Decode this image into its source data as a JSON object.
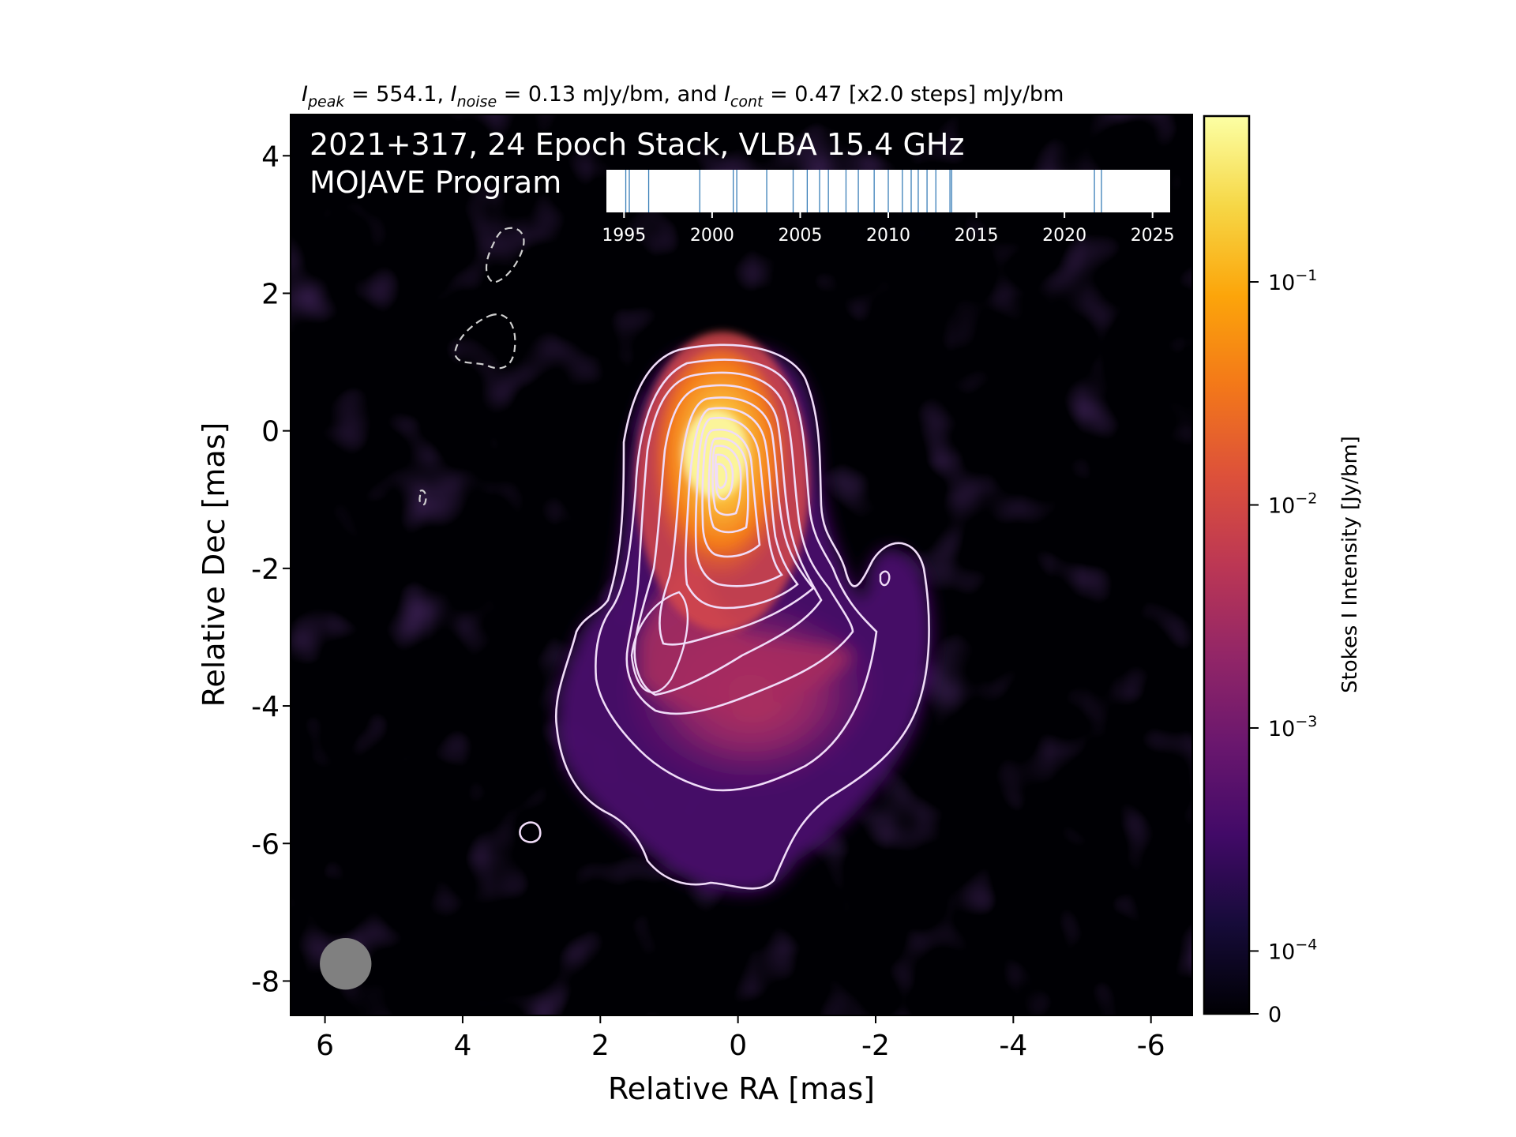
{
  "chart_data": {
    "type": "heatmap",
    "top_label": {
      "i_sym": "I",
      "peak_sub": "peak",
      "peak_val": " = 554.1, ",
      "noise_sub": "noise",
      "noise_val": " = 0.13 mJy/bm, and ",
      "cont_sub": "cont",
      "cont_val": " = 0.47 [x2.0 steps] mJy/bm"
    },
    "title_line1": "2021+317, 24 Epoch Stack, VLBA 15.4 GHz",
    "title_line2": "MOJAVE Program",
    "xlabel": "Relative RA [mas]",
    "ylabel": "Relative Dec [mas]",
    "xlim": [
      6.5,
      -6.6
    ],
    "ylim": [
      -8.5,
      4.6
    ],
    "x_ticks": [
      6,
      4,
      2,
      0,
      -2,
      -4,
      -6
    ],
    "y_ticks": [
      4,
      2,
      0,
      -2,
      -4,
      -6,
      -8
    ],
    "x_tick_labels": [
      "6",
      "4",
      "2",
      "0",
      "-2",
      "-4",
      "-6"
    ],
    "y_tick_labels": [
      "4",
      "2",
      "0",
      "-2",
      "-4",
      "-6",
      "-8"
    ],
    "colormap": "inferno",
    "colorbar": {
      "label": "Stokes I Intensity [Jy/bm]",
      "scale": "log",
      "max": 0.554,
      "tick_base": "10",
      "ticks": [
        {
          "value": 0.1,
          "exp": "−1"
        },
        {
          "value": 0.01,
          "exp": "−2"
        },
        {
          "value": 0.001,
          "exp": "−3"
        },
        {
          "value": 0.0001,
          "exp": "−4"
        }
      ],
      "zero_label": "0"
    },
    "contours": {
      "base_mJy": 0.47,
      "step_factor": 2.0,
      "line_color": "#f0dcf8",
      "negative_color": "#cfcfcf"
    },
    "beam": {
      "ra": 5.7,
      "dec": -7.75,
      "diameter_mas": 0.75,
      "color": "#808080"
    },
    "epoch_timeline": {
      "range": [
        1994,
        2026
      ],
      "tick_labels": [
        "1995",
        "2000",
        "2005",
        "2010",
        "2015",
        "2020",
        "2025"
      ],
      "tick_years": [
        1995,
        2000,
        2005,
        2010,
        2015,
        2020,
        2025
      ],
      "epochs": [
        1995.1,
        1995.3,
        1996.4,
        1999.3,
        2001.2,
        2001.4,
        2003.1,
        2004.6,
        2005.4,
        2006.1,
        2006.6,
        2007.6,
        2008.3,
        2009.2,
        2010.0,
        2010.8,
        2011.3,
        2011.7,
        2012.2,
        2012.7,
        2013.5,
        2013.6,
        2021.7,
        2022.1
      ],
      "line_color": "#3a7fb8"
    }
  }
}
